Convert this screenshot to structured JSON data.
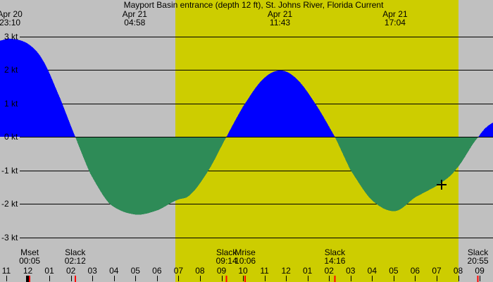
{
  "title": "Mayport Basin entrance (depth 12 ft), St. Johns River, Florida Current",
  "chart_data": {
    "type": "area",
    "title": "Mayport Basin entrance (depth 12 ft), St. Johns River, Florida Current",
    "units": "kt",
    "ylim": [
      -3.3,
      3.2
    ],
    "grid": "horizontal",
    "colors": {
      "background": "#c0c0c0",
      "daylight": "#cdcd00",
      "flood_fill": "#0000ff",
      "ebb_fill": "#2e8b57",
      "grid_line": "#000000",
      "event_tick": "#ff0000",
      "text": "#000000"
    },
    "y_axis": [
      {
        "label": "3 kt",
        "value": 3
      },
      {
        "label": "2 kt",
        "value": 2
      },
      {
        "label": "1 kt",
        "value": 1
      },
      {
        "label": "0 kt",
        "value": 0
      },
      {
        "label": "-1 kt",
        "value": -1
      },
      {
        "label": "-2 kt",
        "value": -2
      },
      {
        "label": "-3 kt",
        "value": -3
      }
    ],
    "extremes": [
      {
        "date": "Apr 20",
        "time": "23:10",
        "t": 0.167,
        "value_kt": 2.93,
        "kind": "max-flood"
      },
      {
        "date": "Apr 21",
        "time": "04:58",
        "t": 5.967,
        "value_kt": -2.32,
        "kind": "max-ebb"
      },
      {
        "date": "Apr 21",
        "time": "11:43",
        "t": 12.717,
        "value_kt": 1.98,
        "kind": "max-flood"
      },
      {
        "date": "Apr 21",
        "time": "17:04",
        "t": 18.067,
        "value_kt": -2.22,
        "kind": "max-ebb"
      }
    ],
    "events": [
      {
        "name": "Mset",
        "time": "00:05",
        "t": 1.083
      },
      {
        "name": "Slack",
        "time": "02:12",
        "t": 3.2
      },
      {
        "name": "Slack",
        "time": "09:14",
        "t": 10.233
      },
      {
        "name": "Mrise",
        "time": "10:06",
        "t": 11.1
      },
      {
        "name": "Slack",
        "time": "14:16",
        "t": 15.267
      },
      {
        "name": "Slack",
        "time": "20:55",
        "t": 21.917
      }
    ],
    "hour_labels": [
      "11",
      "12",
      "01",
      "02",
      "03",
      "04",
      "05",
      "06",
      "07",
      "08",
      "09",
      "10",
      "11",
      "12",
      "01",
      "02",
      "03",
      "04",
      "05",
      "06",
      "07",
      "08",
      "09"
    ],
    "daylight": {
      "start_t": 7.85,
      "end_t": 21.01
    },
    "midnight_t": 1.0,
    "marker_plus": {
      "t": 20.23,
      "kt": -1.43
    },
    "samples": [
      [
        -0.3,
        2.87
      ],
      [
        0.167,
        2.93
      ],
      [
        1.0,
        2.78
      ],
      [
        1.7,
        2.28
      ],
      [
        2.5,
        1.15
      ],
      [
        3.2,
        0.0
      ],
      [
        3.9,
        -1.1
      ],
      [
        4.8,
        -2.0
      ],
      [
        5.967,
        -2.32
      ],
      [
        7.0,
        -2.2
      ],
      [
        7.9,
        -1.9
      ],
      [
        8.54,
        -1.73
      ],
      [
        9.4,
        -1.0
      ],
      [
        10.233,
        0.0
      ],
      [
        11.0,
        0.9
      ],
      [
        11.9,
        1.7
      ],
      [
        12.717,
        1.98
      ],
      [
        13.5,
        1.72
      ],
      [
        14.4,
        0.95
      ],
      [
        15.267,
        0.0
      ],
      [
        16.0,
        -1.0
      ],
      [
        17.0,
        -1.9
      ],
      [
        18.067,
        -2.22
      ],
      [
        19.0,
        -1.81
      ],
      [
        20.1,
        -1.43
      ],
      [
        20.9,
        -0.97
      ],
      [
        21.95,
        0.0
      ],
      [
        22.62,
        0.42
      ]
    ]
  }
}
